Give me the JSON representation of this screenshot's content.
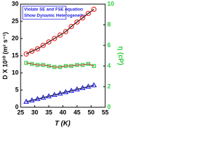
{
  "chart_data": {
    "type": "scatter",
    "xlabel": "T (K)",
    "ylabel": "D X 10¹⁰ (m² s⁻¹)",
    "y2label": "η (cP)",
    "annotations": [
      "Violate SE and FSE equation",
      "Show Dynamic Heterogeneity"
    ],
    "x": [
      27,
      29,
      31,
      33,
      35,
      37,
      39,
      41,
      43,
      45,
      47,
      49,
      51
    ],
    "xlim": [
      25,
      55
    ],
    "xticks": [
      25,
      30,
      35,
      40,
      45,
      50,
      55
    ],
    "ylim": [
      0,
      30
    ],
    "yticks": [
      0,
      5,
      10,
      15,
      20,
      25,
      30
    ],
    "y2lim": [
      0,
      10
    ],
    "y2ticks": [
      0,
      2,
      4,
      6,
      8,
      10
    ],
    "y2color": "#2ecc40",
    "series": [
      {
        "color": "#e8251f",
        "marker": "circle",
        "line_color": "#111111",
        "values": [
          15.5,
          16.3,
          17,
          18,
          19,
          20,
          21,
          22,
          23.5,
          24.8,
          26,
          27.3,
          28.5
        ]
      },
      {
        "color": "#2ecc40",
        "marker": "square",
        "line_color": "#cc2222",
        "axis": "y2",
        "values": [
          4.3,
          4.2,
          4.1,
          4.1,
          4.0,
          3.9,
          3.9,
          4.0,
          4.0,
          4.1,
          4.1,
          4.2,
          4.0
        ]
      },
      {
        "color": "#2020e0",
        "marker": "triangle",
        "line_color": "#111111",
        "values": [
          1.6,
          2,
          2.4,
          2.8,
          3.2,
          3.6,
          4,
          4.4,
          4.8,
          5.2,
          5.6,
          6,
          6.4
        ]
      }
    ]
  }
}
